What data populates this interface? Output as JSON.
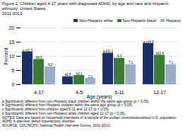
{
  "chart_data": {
    "type": "bar",
    "title": "Figure 2. Children aged 4-17 years with diagnosed ADHD, by age and race and Hispanic ethnicity: United States,\n2011-2013",
    "xlabel": "Age (years)",
    "ylabel": "Percent",
    "categories": [
      "4-17",
      "4-5",
      "6-11",
      "12-17"
    ],
    "series": [
      {
        "name": "Non-Hispanic white",
        "color": "#1b2f6b",
        "values": [
          11.5,
          2.8,
          11.1,
          14.5
        ],
        "value_labels": [
          "a,b11.5",
          "a2.8",
          "a,b11.1",
          "a,c14.5"
        ]
      },
      {
        "name": "Non-Hispanic black",
        "color": "#3a7a36",
        "values": [
          8.9,
          3.2,
          9.3,
          10.4
        ],
        "value_labels": [
          "b8.9",
          "b3.2",
          "9.3",
          "b10.4"
        ]
      },
      {
        "name": "Hispanic",
        "color": "#9bafc4",
        "values": [
          6.3,
          2.2,
          7.1,
          7.1
        ],
        "value_labels": [
          "6.3",
          "2.2",
          "7.1",
          "7.1"
        ]
      }
    ],
    "ylim": [
      0,
      20
    ],
    "yticks": [
      0,
      5,
      10,
      15,
      20
    ],
    "grid": true,
    "legend": "top",
    "data_labels": true,
    "annotations": [
      "a Significantly different from non-Hispanic black children within the same age group (p < 0.05).",
      "b Significantly different from Hispanic children within the same age group (p < 0.05).",
      "c Significantly different from children aged 6-11 and 12-17 (p < 0.05).",
      "d Significantly different from non-Hispanic white children aged 12-17 (p < 0.05).",
      "NOTES: Data are based on household interviews of a sample of the civilian noninstitutionalized U.S. population. ADHD is attention deficit hyperactivity disorder.",
      "SOURCE: CDC/NCHS, National Health Interview Survey, 2011-2013."
    ]
  }
}
